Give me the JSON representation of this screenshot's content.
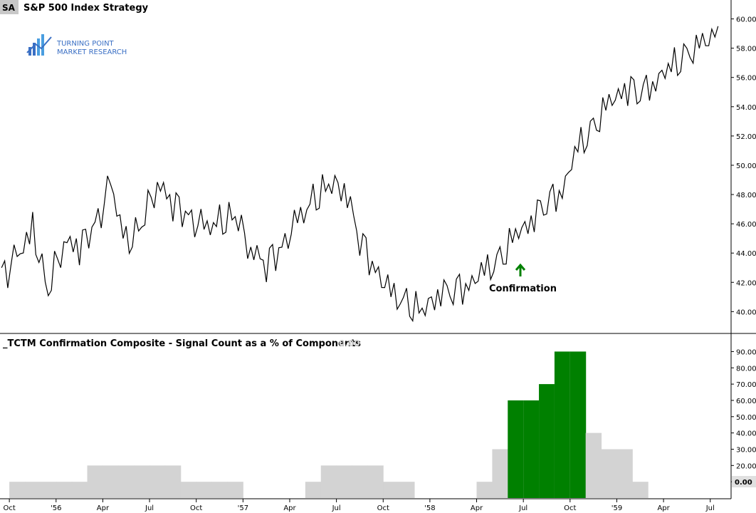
{
  "header": {
    "badge": "SA",
    "title": "S&P 500 Index  Strategy"
  },
  "logo": {
    "line1": "TURNING POINT",
    "line2": "MARKET RESEARCH"
  },
  "annotation": {
    "label": "Confirmation"
  },
  "colors": {
    "price_line": "#000000",
    "green": "#008000",
    "gray": "#d3d3d3",
    "last_value_box": "#e0e0e0",
    "logo_blue": "#3a6fc4"
  },
  "chart_data": [
    {
      "type": "line",
      "title": "S&P 500 Index  Strategy",
      "ylim": [
        38.8,
        61.0
      ],
      "y_ticks": [
        "60.00",
        "58.00",
        "56.00",
        "54.00",
        "52.00",
        "50.00",
        "48.00",
        "46.00",
        "44.00",
        "42.00",
        "40.00"
      ],
      "series": [
        {
          "name": "S&P 500 Index",
          "x": [
            "1955-09",
            "1955-10",
            "1955-11",
            "1955-12",
            "1956-01",
            "1956-02",
            "1956-03",
            "1956-04",
            "1956-05",
            "1956-06",
            "1956-07",
            "1956-08",
            "1956-09",
            "1956-10",
            "1956-11",
            "1956-12",
            "1957-01",
            "1957-02",
            "1957-03",
            "1957-04",
            "1957-05",
            "1957-06",
            "1957-07",
            "1957-08",
            "1957-09",
            "1957-10",
            "1957-11",
            "1957-12",
            "1958-01",
            "1958-02",
            "1958-03",
            "1958-04",
            "1958-05",
            "1958-06",
            "1958-07",
            "1958-08",
            "1958-09",
            "1958-10",
            "1958-11",
            "1958-12",
            "1959-01",
            "1959-02",
            "1959-03",
            "1959-04",
            "1959-05",
            "1959-06",
            "1959-07"
          ],
          "values": [
            42.5,
            43.5,
            45.5,
            41.5,
            45.0,
            44.5,
            45.8,
            48.5,
            44.5,
            46.0,
            49.0,
            47.5,
            46.5,
            45.5,
            46.0,
            46.5,
            44.5,
            43.3,
            44.5,
            46.0,
            47.5,
            48.5,
            48.8,
            45.0,
            43.0,
            41.0,
            40.5,
            39.8,
            41.5,
            41.5,
            42.0,
            42.5,
            43.5,
            45.0,
            46.5,
            47.5,
            48.5,
            51.0,
            52.5,
            54.0,
            55.5,
            55.0,
            56.0,
            56.5,
            57.5,
            58.0,
            59.5
          ]
        }
      ]
    },
    {
      "type": "bar",
      "title": "_TCTM Confirmation Composite - Signal Count as a % of Components",
      "last_value": "0.00",
      "ylim": [
        0,
        95
      ],
      "y_ticks": [
        "90.00",
        "80.00",
        "70.00",
        "60.00",
        "50.00",
        "40.00",
        "30.00",
        "20.00",
        "10.00"
      ],
      "categories": [
        "1955-09",
        "1955-10",
        "1955-11",
        "1955-12",
        "1956-01",
        "1956-02",
        "1956-03",
        "1956-04",
        "1956-05",
        "1956-06",
        "1956-07",
        "1956-08",
        "1956-09",
        "1956-10",
        "1956-11",
        "1956-12",
        "1957-01",
        "1957-02",
        "1957-03",
        "1957-04",
        "1957-05",
        "1957-06",
        "1957-07",
        "1957-08",
        "1957-09",
        "1957-10",
        "1957-11",
        "1957-12",
        "1958-01",
        "1958-02",
        "1958-03",
        "1958-04",
        "1958-05",
        "1958-06",
        "1958-07",
        "1958-08",
        "1958-09",
        "1958-10",
        "1958-11",
        "1958-12",
        "1959-01",
        "1959-02",
        "1959-03",
        "1959-04",
        "1959-05",
        "1959-06",
        "1959-07"
      ],
      "series": [
        {
          "name": "Composite",
          "values": [
            0,
            10,
            10,
            10,
            10,
            10,
            20,
            20,
            20,
            20,
            20,
            20,
            10,
            10,
            10,
            10,
            0,
            0,
            0,
            0,
            10,
            20,
            20,
            20,
            20,
            10,
            10,
            0,
            0,
            0,
            0,
            10,
            30,
            60,
            60,
            70,
            90,
            90,
            40,
            30,
            30,
            10,
            0,
            0,
            0,
            0,
            0
          ]
        },
        {
          "name": "Confirmation",
          "values": [
            0,
            0,
            0,
            0,
            0,
            0,
            0,
            0,
            0,
            0,
            0,
            0,
            0,
            0,
            0,
            0,
            0,
            0,
            0,
            0,
            0,
            0,
            0,
            0,
            0,
            0,
            0,
            0,
            0,
            0,
            0,
            0,
            0,
            60,
            60,
            70,
            90,
            90,
            0,
            0,
            0,
            0,
            0,
            0,
            0,
            0,
            0
          ]
        }
      ]
    }
  ],
  "x_axis": {
    "ticks": [
      "Oct",
      "'56",
      "Apr",
      "Jul",
      "Oct",
      "'57",
      "Apr",
      "Jul",
      "Oct",
      "'58",
      "Apr",
      "Jul",
      "Oct",
      "'59",
      "Apr",
      "Jul"
    ]
  }
}
